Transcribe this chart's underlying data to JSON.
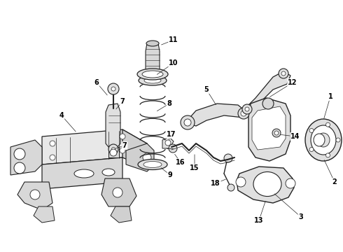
{
  "bg_color": "#ffffff",
  "line_color": "#222222",
  "label_color": "#000000",
  "label_fontsize": 7,
  "parts": {
    "subframe_color": "#f0f0f0",
    "spring_color": "#f5f5f5",
    "arm_color": "#e8e8e8"
  }
}
